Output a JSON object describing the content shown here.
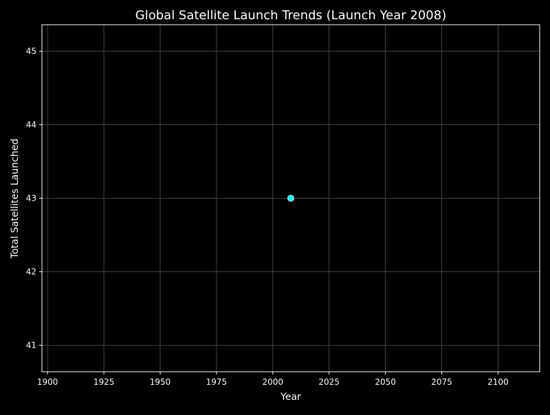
{
  "chart_data": {
    "type": "scatter",
    "title": "Global Satellite Launch Trends (Launch Year 2008)",
    "xlabel": "Year",
    "ylabel": "Total Satellites Launched",
    "xlim": [
      1897.5,
      2118.5
    ],
    "ylim": [
      40.64,
      45.36
    ],
    "x_ticks": [
      1900,
      1925,
      1950,
      1975,
      2000,
      2025,
      2050,
      2075,
      2100
    ],
    "y_ticks": [
      41,
      42,
      43,
      44,
      45
    ],
    "grid": true,
    "points": [
      {
        "x": 2008,
        "y": 43
      }
    ],
    "colors": {
      "background": "#000000",
      "axes": "#ffffff",
      "grid": "#555555",
      "point_fill": "#00ffff",
      "point_edge": "#ffffff",
      "text": "#ffffff"
    }
  }
}
